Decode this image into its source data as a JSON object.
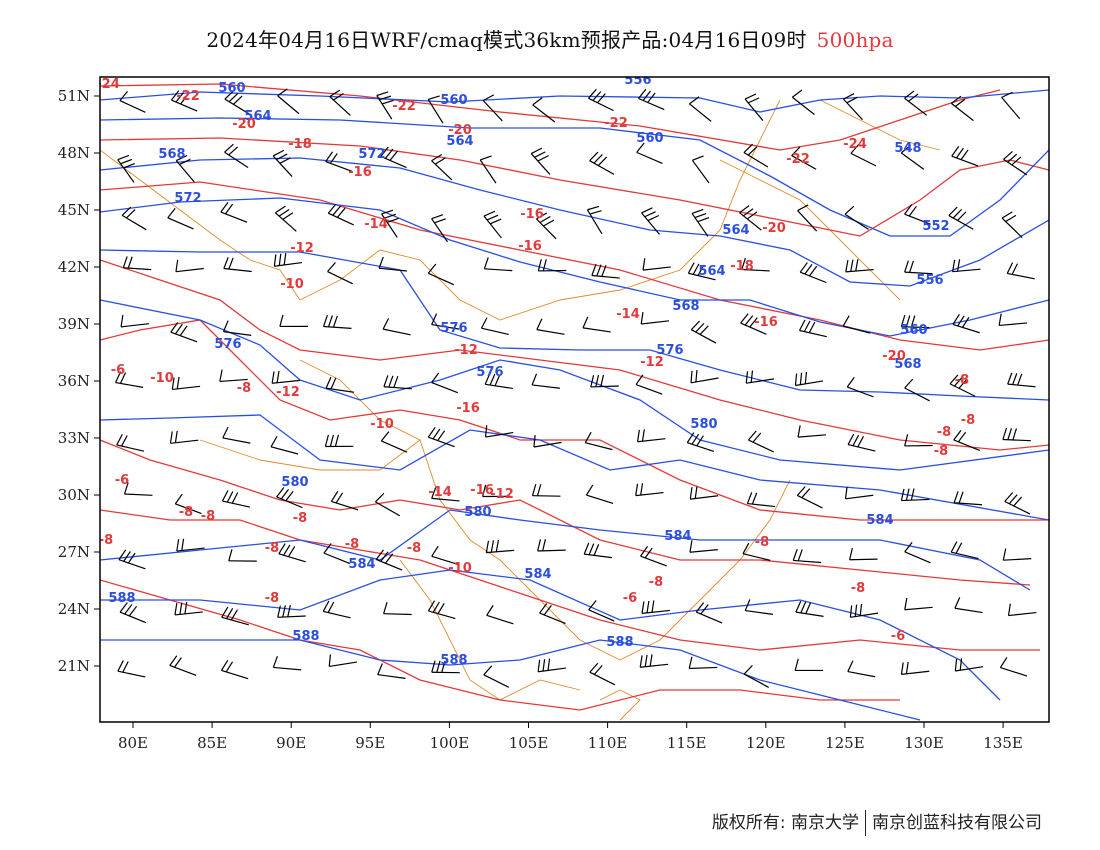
{
  "title": {
    "main": "2024年04月16日WRF/cmaq模式36km预报产品:04月16日09时",
    "level": "500hpa",
    "level_color": "#e23a3a"
  },
  "axes": {
    "x_ticks": [
      "80E",
      "85E",
      "90E",
      "95E",
      "100E",
      "105E",
      "110E",
      "115E",
      "120E",
      "125E",
      "130E",
      "135E"
    ],
    "y_ticks": [
      "51N",
      "48N",
      "45N",
      "42N",
      "39N",
      "36N",
      "33N",
      "30N",
      "27N",
      "24N",
      "21N"
    ]
  },
  "colors": {
    "height_contours": "#2a4fe0",
    "temperature_contours": "#e23a3a",
    "borders": "#e08a2c",
    "wind_barbs": "#000000"
  },
  "contour_labels": {
    "height": [
      "560",
      "564",
      "560",
      "556",
      "564",
      "568",
      "560",
      "572",
      "572",
      "548",
      "552",
      "564",
      "568",
      "556",
      "560",
      "564",
      "568",
      "576",
      "576",
      "576",
      "576",
      "580",
      "580",
      "580",
      "584",
      "584",
      "584",
      "584",
      "588",
      "588",
      "588",
      "588"
    ],
    "temperature": [
      "-24",
      "-22",
      "-20",
      "-18",
      "-16",
      "-22",
      "-20",
      "-22",
      "-24",
      "-22",
      "-16",
      "-14",
      "-12",
      "-16",
      "-20",
      "-18",
      "-10",
      "-14",
      "-16",
      "-12",
      "-12",
      "-10",
      "-20",
      "-16",
      "-8",
      "-6",
      "-8",
      "-12",
      "-10",
      "-8",
      "-8",
      "-8",
      "-6",
      "-8",
      "-8",
      "-8",
      "-14",
      "-16",
      "-12",
      "-8",
      "-8",
      "-8",
      "-8",
      "-10",
      "-8",
      "-8",
      "-6",
      "-8",
      "-8",
      "-6"
    ]
  },
  "footer": {
    "left": "版权所有: 南京大学",
    "right": "南京创蓝科技有限公司"
  }
}
